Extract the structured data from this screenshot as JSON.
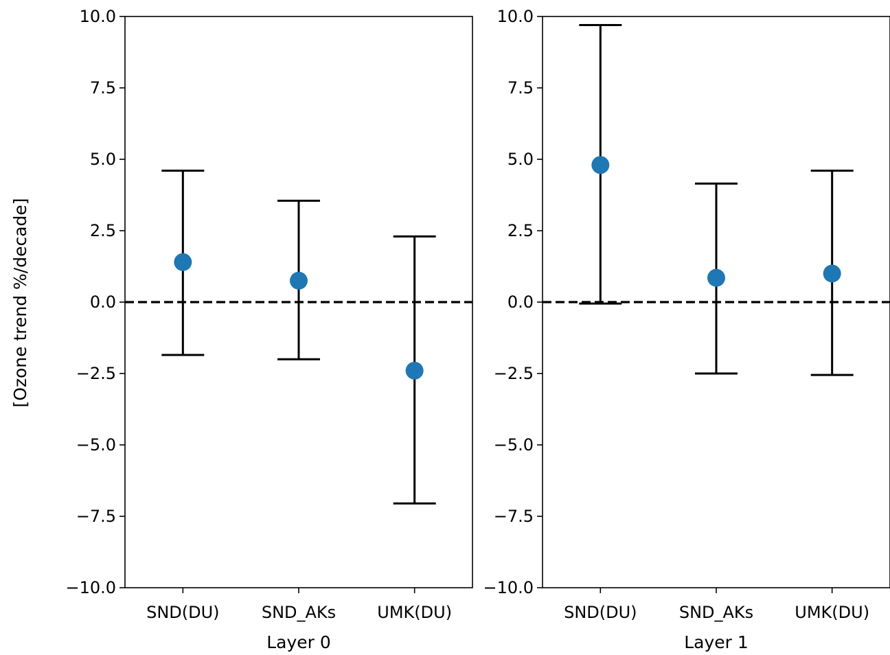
{
  "chart_data": [
    {
      "type": "errorbar",
      "xlabel": "Layer 0",
      "ylabel": "[Ozone trend %/decade]",
      "ylim": [
        -10.0,
        10.0
      ],
      "yticks": [
        10.0,
        7.5,
        5.0,
        2.5,
        0.0,
        -2.5,
        -5.0,
        -7.5,
        -10.0
      ],
      "ytick_labels": [
        "10.0",
        "7.5",
        "5.0",
        "2.5",
        "0.0",
        "−2.5",
        "−5.0",
        "−7.5",
        "−10.0"
      ],
      "categories": [
        "SND(DU)",
        "SND_AKs",
        "UMK(DU)"
      ],
      "values": [
        1.4,
        0.75,
        -2.4
      ],
      "error_low": [
        -1.85,
        -2.0,
        -7.05
      ],
      "error_high": [
        4.6,
        3.55,
        2.3
      ],
      "reference_line": 0.0,
      "grid": false
    },
    {
      "type": "errorbar",
      "xlabel": "Layer 1",
      "ylabel": "",
      "ylim": [
        -10.0,
        10.0
      ],
      "yticks": [
        10.0,
        7.5,
        5.0,
        2.5,
        0.0,
        -2.5,
        -5.0,
        -7.5,
        -10.0
      ],
      "ytick_labels": [
        "10.0",
        "7.5",
        "5.0",
        "2.5",
        "0.0",
        "−2.5",
        "−5.0",
        "−7.5",
        "−10.0"
      ],
      "categories": [
        "SND(DU)",
        "SND_AKs",
        "UMK(DU)"
      ],
      "values": [
        4.8,
        0.85,
        1.0
      ],
      "error_low": [
        -0.05,
        -2.5,
        -2.55
      ],
      "error_high": [
        9.7,
        4.15,
        4.6
      ],
      "reference_line": 0.0,
      "grid": false
    }
  ],
  "colors": {
    "marker": "#1f77b4",
    "errorbar": "#000000",
    "reference_line": "#000000"
  }
}
